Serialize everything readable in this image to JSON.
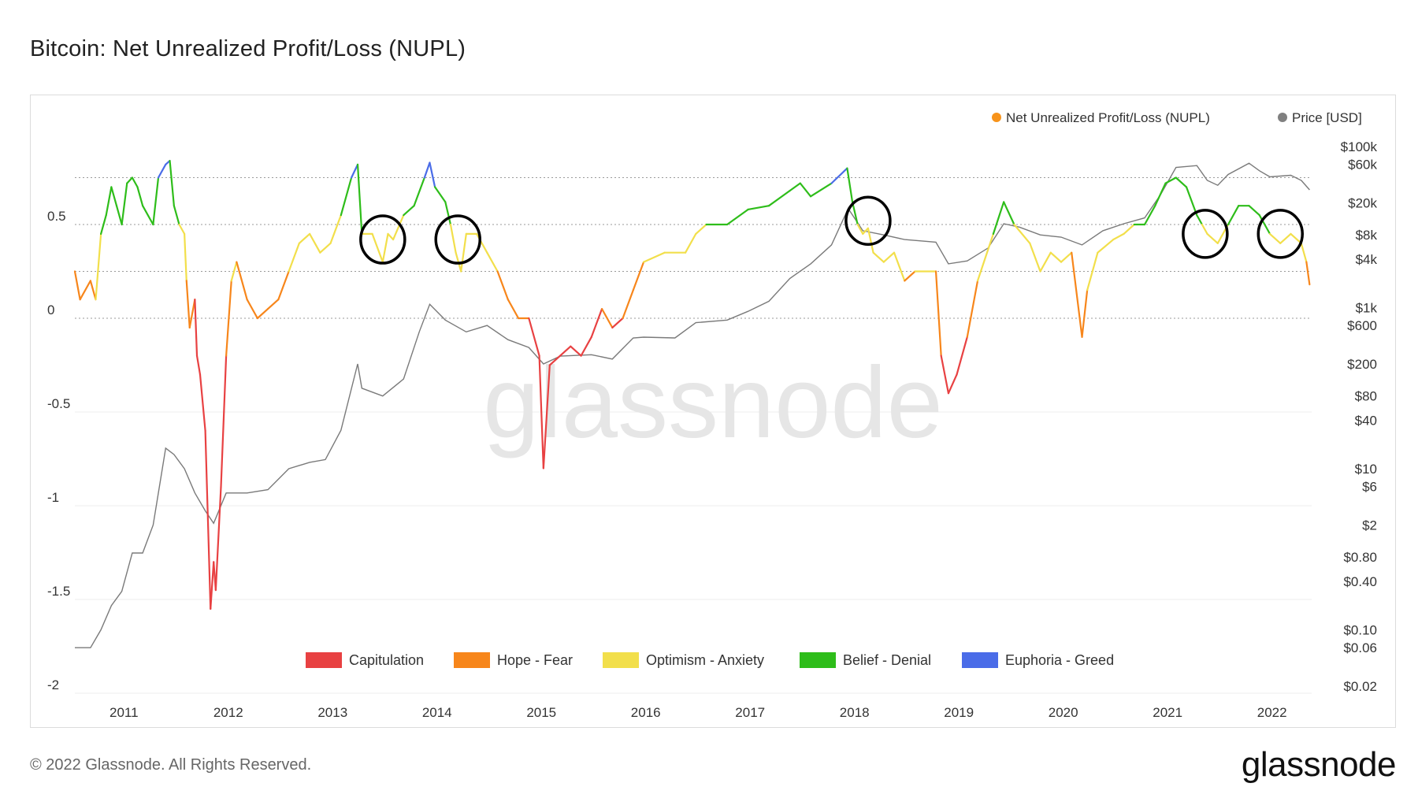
{
  "header": {
    "title": "Bitcoin: Net Unrealized Profit/Loss (NUPL)"
  },
  "footer": {
    "copyright": "© 2022 Glassnode. All Rights Reserved.",
    "brand": "glassnode"
  },
  "watermark": "glassnode",
  "chart_data": {
    "type": "line",
    "title": "Bitcoin: Net Unrealized Profit/Loss (NUPL)",
    "legend_top": [
      {
        "name": "Net Unrealized Profit/Loss (NUPL)",
        "color": "#f7931a"
      },
      {
        "name": "Price [USD]",
        "color": "#808080"
      }
    ],
    "legend_bottom": [
      {
        "name": "Capitulation",
        "color": "#e84142"
      },
      {
        "name": "Hope - Fear",
        "color": "#f7861b"
      },
      {
        "name": "Optimism - Anxiety",
        "color": "#f2df4b"
      },
      {
        "name": "Belief - Denial",
        "color": "#2ebd1a"
      },
      {
        "name": "Euphoria - Greed",
        "color": "#4a6ce8"
      }
    ],
    "x_ticks": [
      "2011",
      "2012",
      "2013",
      "2014",
      "2015",
      "2016",
      "2017",
      "2018",
      "2019",
      "2020",
      "2021",
      "2022"
    ],
    "y_left_ticks": [
      "0.5",
      "0",
      "-0.5",
      "-1",
      "-1.5",
      "-2"
    ],
    "y_left_tick_values": [
      0.5,
      0,
      -0.5,
      -1,
      -1.5,
      -2
    ],
    "y_right_ticks": [
      "$100k",
      "$60k",
      "$20k",
      "$8k",
      "$4k",
      "$1k",
      "$600",
      "$200",
      "$80",
      "$40",
      "$10",
      "$6",
      "$2",
      "$0.80",
      "$0.40",
      "$0.10",
      "$0.06",
      "$0.02"
    ],
    "y_right_tick_values": [
      100000,
      60000,
      20000,
      8000,
      4000,
      1000,
      600,
      200,
      80,
      40,
      10,
      6,
      2,
      0.8,
      0.4,
      0.1,
      0.06,
      0.02
    ],
    "y_left_range": [
      -2,
      1.0
    ],
    "y_right_scale": "log",
    "zone_thresholds": [
      0,
      0.25,
      0.5,
      0.75
    ],
    "x_range": [
      2010.55,
      2022.4
    ],
    "nupl_series": [
      [
        2010.55,
        0.25
      ],
      [
        2010.6,
        0.1
      ],
      [
        2010.7,
        0.2
      ],
      [
        2010.75,
        0.1
      ],
      [
        2010.8,
        0.45
      ],
      [
        2010.85,
        0.55
      ],
      [
        2010.9,
        0.7
      ],
      [
        2010.95,
        0.6
      ],
      [
        2011.0,
        0.5
      ],
      [
        2011.05,
        0.72
      ],
      [
        2011.1,
        0.75
      ],
      [
        2011.15,
        0.7
      ],
      [
        2011.2,
        0.6
      ],
      [
        2011.3,
        0.5
      ],
      [
        2011.35,
        0.75
      ],
      [
        2011.42,
        0.82
      ],
      [
        2011.46,
        0.84
      ],
      [
        2011.5,
        0.6
      ],
      [
        2011.55,
        0.5
      ],
      [
        2011.6,
        0.45
      ],
      [
        2011.62,
        0.2
      ],
      [
        2011.65,
        -0.05
      ],
      [
        2011.7,
        0.1
      ],
      [
        2011.72,
        -0.2
      ],
      [
        2011.75,
        -0.3
      ],
      [
        2011.8,
        -0.6
      ],
      [
        2011.85,
        -1.55
      ],
      [
        2011.88,
        -1.3
      ],
      [
        2011.9,
        -1.45
      ],
      [
        2011.95,
        -0.9
      ],
      [
        2012.0,
        -0.2
      ],
      [
        2012.05,
        0.2
      ],
      [
        2012.1,
        0.3
      ],
      [
        2012.2,
        0.1
      ],
      [
        2012.3,
        0.0
      ],
      [
        2012.4,
        0.05
      ],
      [
        2012.5,
        0.1
      ],
      [
        2012.6,
        0.25
      ],
      [
        2012.7,
        0.4
      ],
      [
        2012.8,
        0.45
      ],
      [
        2012.9,
        0.35
      ],
      [
        2013.0,
        0.4
      ],
      [
        2013.1,
        0.55
      ],
      [
        2013.2,
        0.75
      ],
      [
        2013.26,
        0.82
      ],
      [
        2013.3,
        0.45
      ],
      [
        2013.4,
        0.45
      ],
      [
        2013.5,
        0.3
      ],
      [
        2013.55,
        0.45
      ],
      [
        2013.6,
        0.42
      ],
      [
        2013.7,
        0.55
      ],
      [
        2013.8,
        0.6
      ],
      [
        2013.9,
        0.75
      ],
      [
        2013.95,
        0.83
      ],
      [
        2014.0,
        0.7
      ],
      [
        2014.1,
        0.62
      ],
      [
        2014.15,
        0.5
      ],
      [
        2014.2,
        0.35
      ],
      [
        2014.25,
        0.25
      ],
      [
        2014.3,
        0.45
      ],
      [
        2014.4,
        0.45
      ],
      [
        2014.5,
        0.35
      ],
      [
        2014.6,
        0.25
      ],
      [
        2014.7,
        0.1
      ],
      [
        2014.8,
        0.0
      ],
      [
        2014.9,
        0.0
      ],
      [
        2015.0,
        -0.2
      ],
      [
        2015.04,
        -0.8
      ],
      [
        2015.1,
        -0.25
      ],
      [
        2015.2,
        -0.2
      ],
      [
        2015.3,
        -0.15
      ],
      [
        2015.4,
        -0.2
      ],
      [
        2015.5,
        -0.1
      ],
      [
        2015.6,
        0.05
      ],
      [
        2015.7,
        -0.05
      ],
      [
        2015.8,
        0.0
      ],
      [
        2015.9,
        0.15
      ],
      [
        2016.0,
        0.3
      ],
      [
        2016.2,
        0.35
      ],
      [
        2016.4,
        0.35
      ],
      [
        2016.5,
        0.45
      ],
      [
        2016.6,
        0.5
      ],
      [
        2016.8,
        0.5
      ],
      [
        2017.0,
        0.58
      ],
      [
        2017.2,
        0.6
      ],
      [
        2017.4,
        0.68
      ],
      [
        2017.5,
        0.72
      ],
      [
        2017.6,
        0.65
      ],
      [
        2017.8,
        0.72
      ],
      [
        2017.95,
        0.8
      ],
      [
        2018.0,
        0.62
      ],
      [
        2018.05,
        0.5
      ],
      [
        2018.1,
        0.45
      ],
      [
        2018.15,
        0.48
      ],
      [
        2018.2,
        0.35
      ],
      [
        2018.3,
        0.3
      ],
      [
        2018.4,
        0.35
      ],
      [
        2018.5,
        0.2
      ],
      [
        2018.6,
        0.25
      ],
      [
        2018.8,
        0.25
      ],
      [
        2018.85,
        -0.2
      ],
      [
        2018.92,
        -0.4
      ],
      [
        2019.0,
        -0.3
      ],
      [
        2019.1,
        -0.1
      ],
      [
        2019.2,
        0.2
      ],
      [
        2019.35,
        0.45
      ],
      [
        2019.45,
        0.62
      ],
      [
        2019.55,
        0.5
      ],
      [
        2019.7,
        0.4
      ],
      [
        2019.8,
        0.25
      ],
      [
        2019.9,
        0.35
      ],
      [
        2020.0,
        0.3
      ],
      [
        2020.1,
        0.35
      ],
      [
        2020.2,
        -0.1
      ],
      [
        2020.25,
        0.15
      ],
      [
        2020.35,
        0.35
      ],
      [
        2020.5,
        0.42
      ],
      [
        2020.6,
        0.45
      ],
      [
        2020.7,
        0.5
      ],
      [
        2020.8,
        0.5
      ],
      [
        2020.9,
        0.6
      ],
      [
        2021.0,
        0.72
      ],
      [
        2021.1,
        0.75
      ],
      [
        2021.2,
        0.7
      ],
      [
        2021.3,
        0.55
      ],
      [
        2021.35,
        0.5
      ],
      [
        2021.4,
        0.45
      ],
      [
        2021.5,
        0.4
      ],
      [
        2021.6,
        0.5
      ],
      [
        2021.7,
        0.6
      ],
      [
        2021.8,
        0.6
      ],
      [
        2021.9,
        0.55
      ],
      [
        2022.0,
        0.45
      ],
      [
        2022.1,
        0.4
      ],
      [
        2022.2,
        0.45
      ],
      [
        2022.3,
        0.4
      ],
      [
        2022.35,
        0.3
      ],
      [
        2022.38,
        0.18
      ]
    ],
    "price_series": [
      [
        2010.55,
        0.06
      ],
      [
        2010.7,
        0.06
      ],
      [
        2010.8,
        0.1
      ],
      [
        2010.9,
        0.2
      ],
      [
        2011.0,
        0.3
      ],
      [
        2011.1,
        0.9
      ],
      [
        2011.2,
        0.9
      ],
      [
        2011.3,
        2
      ],
      [
        2011.42,
        18
      ],
      [
        2011.5,
        15
      ],
      [
        2011.6,
        10
      ],
      [
        2011.7,
        5
      ],
      [
        2011.8,
        3
      ],
      [
        2011.88,
        2.1
      ],
      [
        2012.0,
        5
      ],
      [
        2012.2,
        5
      ],
      [
        2012.4,
        5.5
      ],
      [
        2012.6,
        10
      ],
      [
        2012.8,
        12
      ],
      [
        2012.95,
        13
      ],
      [
        2013.1,
        30
      ],
      [
        2013.26,
        200
      ],
      [
        2013.3,
        100
      ],
      [
        2013.5,
        80
      ],
      [
        2013.7,
        130
      ],
      [
        2013.85,
        500
      ],
      [
        2013.95,
        1100
      ],
      [
        2014.1,
        700
      ],
      [
        2014.3,
        500
      ],
      [
        2014.5,
        600
      ],
      [
        2014.7,
        400
      ],
      [
        2014.9,
        320
      ],
      [
        2015.04,
        200
      ],
      [
        2015.2,
        250
      ],
      [
        2015.5,
        260
      ],
      [
        2015.7,
        230
      ],
      [
        2015.9,
        420
      ],
      [
        2016.0,
        430
      ],
      [
        2016.3,
        420
      ],
      [
        2016.5,
        650
      ],
      [
        2016.8,
        700
      ],
      [
        2017.0,
        900
      ],
      [
        2017.2,
        1200
      ],
      [
        2017.4,
        2300
      ],
      [
        2017.6,
        3500
      ],
      [
        2017.8,
        6000
      ],
      [
        2017.96,
        17000
      ],
      [
        2018.1,
        9000
      ],
      [
        2018.3,
        8000
      ],
      [
        2018.5,
        7000
      ],
      [
        2018.8,
        6500
      ],
      [
        2018.92,
        3500
      ],
      [
        2019.1,
        3800
      ],
      [
        2019.3,
        5500
      ],
      [
        2019.45,
        11000
      ],
      [
        2019.6,
        10000
      ],
      [
        2019.8,
        8000
      ],
      [
        2020.0,
        7500
      ],
      [
        2020.2,
        6000
      ],
      [
        2020.4,
        9000
      ],
      [
        2020.6,
        11000
      ],
      [
        2020.8,
        13000
      ],
      [
        2020.95,
        25000
      ],
      [
        2021.1,
        55000
      ],
      [
        2021.3,
        58000
      ],
      [
        2021.4,
        38000
      ],
      [
        2021.5,
        33000
      ],
      [
        2021.6,
        45000
      ],
      [
        2021.8,
        62000
      ],
      [
        2021.9,
        50000
      ],
      [
        2022.0,
        42000
      ],
      [
        2022.2,
        44000
      ],
      [
        2022.3,
        38000
      ],
      [
        2022.38,
        29000
      ]
    ],
    "annotations": [
      {
        "type": "circle",
        "x": 2013.5,
        "y": 0.42
      },
      {
        "type": "circle",
        "x": 2014.22,
        "y": 0.42
      },
      {
        "type": "circle",
        "x": 2018.15,
        "y": 0.52
      },
      {
        "type": "circle",
        "x": 2021.38,
        "y": 0.45
      },
      {
        "type": "circle",
        "x": 2022.1,
        "y": 0.45
      }
    ]
  }
}
